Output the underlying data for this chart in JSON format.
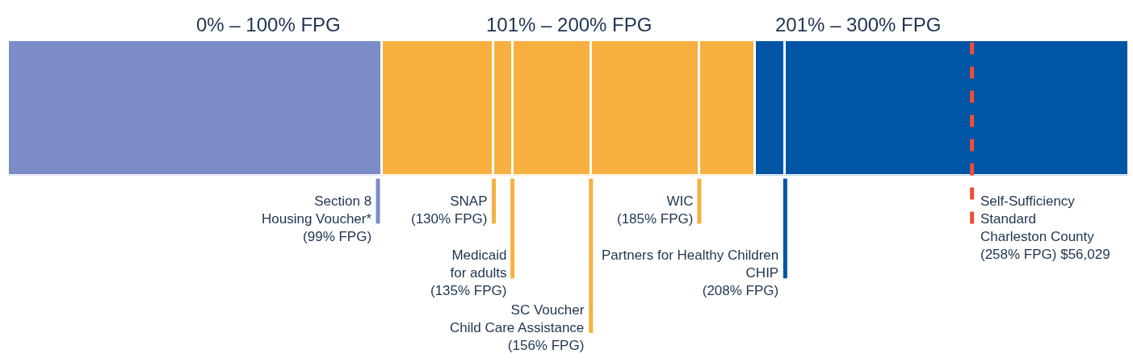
{
  "chart_data": {
    "type": "bar",
    "orientation": "horizontal",
    "stacked": true,
    "categories": [
      null
    ],
    "xlim": [
      0,
      300
    ],
    "tick_labels": false,
    "series": [
      {
        "color": "#7b8cc6",
        "values": [
          100
        ]
      },
      {
        "color": "#f8b040",
        "values": [
          30
        ]
      },
      {
        "color": "#f8b040",
        "values": [
          5
        ]
      },
      {
        "color": "#f8b040",
        "values": [
          21
        ]
      },
      {
        "color": "#f8b040",
        "values": [
          29
        ]
      },
      {
        "color": "#f8b040",
        "values": [
          15
        ]
      },
      {
        "color": "#0055a5",
        "values": [
          8
        ]
      },
      {
        "color": "#0055a5",
        "values": [
          92
        ]
      }
    ],
    "annotations": [
      "0% – 100% FPG",
      "101% – 200% FPG",
      "201% – 300% FPG"
    ],
    "ref_lines": [
      {
        "axis": "x",
        "value": 99,
        "label": "Section 8\nHousing Voucher*\n(99% FPG)",
        "color": "#7b8cc6"
      },
      {
        "axis": "x",
        "value": 130,
        "label": "SNAP\n(130% FPG)",
        "color": "#f8b040"
      },
      {
        "axis": "x",
        "value": 135,
        "label": "Medicaid\nfor adults\n(135% FPG)",
        "color": "#f8b040"
      },
      {
        "axis": "x",
        "value": 156,
        "label": "SC Voucher\nChild Care Assistance\n(156% FPG)",
        "color": "#f8b040"
      },
      {
        "axis": "x",
        "value": 185,
        "label": "WIC\n(185% FPG)",
        "color": "#f8b040"
      },
      {
        "axis": "x",
        "value": 208,
        "label": "Partners for Healthy Children\nCHIP\n(208% FPG)",
        "color": "#0055a5"
      },
      {
        "axis": "x",
        "value": 258,
        "label": "Self-Sufficiency\nStandard\nCharleston County\n(258% FPG) $56,029",
        "color": "#f04e37",
        "line_style": "dashed"
      }
    ]
  }
}
